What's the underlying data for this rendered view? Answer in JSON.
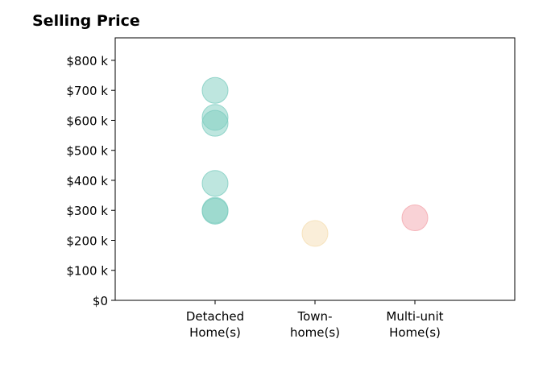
{
  "chart_data": {
    "type": "scatter",
    "title": "Selling Price",
    "xlabel": "",
    "ylabel": "",
    "categories": [
      "Detached\nHome(s)",
      "Town-\nhome(s)",
      "Multi-unit\nHome(s)"
    ],
    "ylim": [
      0,
      875000
    ],
    "y_ticks": [
      0,
      100000,
      200000,
      300000,
      400000,
      500000,
      600000,
      700000,
      800000
    ],
    "y_tick_labels": [
      "$0",
      "$100 k",
      "$200 k",
      "$300 k",
      "$400 k",
      "$500 k",
      "$600 k",
      "$700 k",
      "$800 k"
    ],
    "grid": false,
    "points": [
      {
        "category": "Detached\nHome(s)",
        "y": 700000
      },
      {
        "category": "Detached\nHome(s)",
        "y": 610000
      },
      {
        "category": "Detached\nHome(s)",
        "y": 590000
      },
      {
        "category": "Detached\nHome(s)",
        "y": 390000
      },
      {
        "category": "Detached\nHome(s)",
        "y": 300000
      },
      {
        "category": "Detached\nHome(s)",
        "y": 297000
      },
      {
        "category": "Town-\nhome(s)",
        "y": 223000
      },
      {
        "category": "Multi-unit\nHome(s)",
        "y": 275000
      }
    ],
    "category_colors": [
      "#7ecdc0",
      "#f5deb3",
      "#f4a6ad"
    ],
    "marker_opacity": 0.5
  }
}
